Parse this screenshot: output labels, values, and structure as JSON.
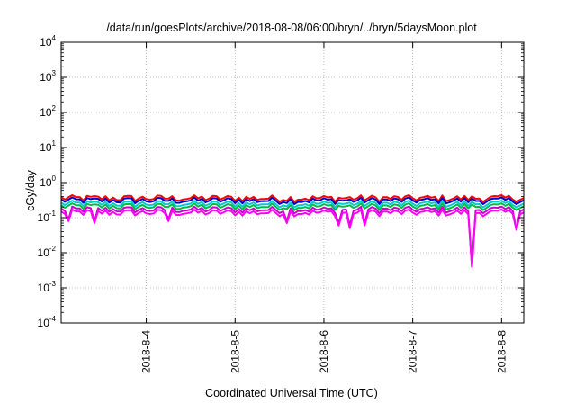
{
  "chart_data": {
    "type": "line",
    "title": "/data/run/goesPlots/archive/2018-08-08/06:00/bryn/../bryn/5daysMoon.plot",
    "xlabel": "Coordinated Universal Time (UTC)",
    "ylabel": "cGy/day",
    "y_scale": "log",
    "ylim": [
      0.0001,
      10000
    ],
    "xlim": [
      "2018-08-03 01:00",
      "2018-08-08 06:00"
    ],
    "grid": true,
    "y_ticks": [
      {
        "base": "10",
        "exp": "4"
      },
      {
        "base": "10",
        "exp": "3"
      },
      {
        "base": "10",
        "exp": "2"
      },
      {
        "base": "10",
        "exp": "1"
      },
      {
        "base": "10",
        "exp": "0"
      },
      {
        "base": "10",
        "exp": "-1"
      },
      {
        "base": "10",
        "exp": "-2"
      },
      {
        "base": "10",
        "exp": "-3"
      },
      {
        "base": "10",
        "exp": "-4"
      }
    ],
    "x_ticks": [
      {
        "label": "2018-8-4",
        "date": "2018-08-04 00:00"
      },
      {
        "label": "2018-8-5",
        "date": "2018-08-05 00:00"
      },
      {
        "label": "2018-8-6",
        "date": "2018-08-06 00:00"
      },
      {
        "label": "2018-8-7",
        "date": "2018-08-07 00:00"
      },
      {
        "label": "2018-8-8",
        "date": "2018-08-08 00:00"
      }
    ],
    "series": [
      {
        "color": "#ff0000",
        "level": 0.36,
        "dips": []
      },
      {
        "color": "#0000cc",
        "level": 0.31,
        "dips": []
      },
      {
        "color": "#00cccc",
        "level": 0.25,
        "dips": []
      },
      {
        "color": "#00bb44",
        "level": 0.21,
        "dips": []
      },
      {
        "color": "#cc00cc",
        "level": 0.17,
        "dips": [
          {
            "date": "2018-08-03 03:00",
            "value": 0.09
          },
          {
            "date": "2018-08-03 10:00",
            "value": 0.08
          },
          {
            "date": "2018-08-04 06:00",
            "value": 0.09
          },
          {
            "date": "2018-08-05 14:00",
            "value": 0.08
          },
          {
            "date": "2018-08-06 04:00",
            "value": 0.07
          },
          {
            "date": "2018-08-06 07:00",
            "value": 0.06
          },
          {
            "date": "2018-08-06 11:00",
            "value": 0.07
          },
          {
            "date": "2018-08-07 16:00",
            "value": 0.004
          },
          {
            "date": "2018-08-08 04:00",
            "value": 0.045
          }
        ]
      },
      {
        "color": "#ff00ff",
        "level": 0.14,
        "dips": [
          {
            "date": "2018-08-03 03:00",
            "value": 0.08
          },
          {
            "date": "2018-08-03 10:00",
            "value": 0.07
          },
          {
            "date": "2018-08-04 06:00",
            "value": 0.08
          },
          {
            "date": "2018-08-05 14:00",
            "value": 0.07
          },
          {
            "date": "2018-08-06 04:00",
            "value": 0.06
          },
          {
            "date": "2018-08-06 07:00",
            "value": 0.05
          },
          {
            "date": "2018-08-06 11:00",
            "value": 0.06
          },
          {
            "date": "2018-08-07 16:00",
            "value": 0.004
          },
          {
            "date": "2018-08-08 04:00",
            "value": 0.045
          }
        ]
      }
    ]
  }
}
